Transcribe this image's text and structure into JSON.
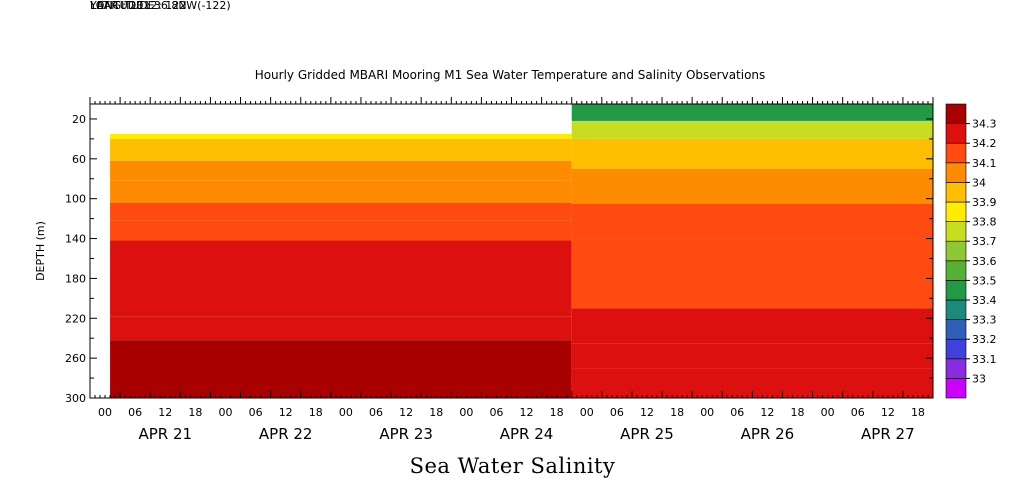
{
  "header": {
    "longitude": "LONGITUDE : 122W(-122)",
    "latitude": "LATITUDE : 36.8N",
    "year": "YEAR : 2012"
  },
  "chart_data": {
    "type": "heatmap",
    "title": "Hourly Gridded MBARI Mooring M1 Sea Water Temperature and Salinity Observations",
    "footer": "Sea Water Salinity",
    "xlabel": "",
    "ylabel": "DEPTH (m)",
    "y_ticks": [
      "20",
      "60",
      "100",
      "140",
      "180",
      "220",
      "260",
      "300"
    ],
    "ylim": [
      300,
      5
    ],
    "x_hour_labels": [
      "00",
      "06",
      "12",
      "18",
      "00",
      "06",
      "12",
      "18",
      "00",
      "06",
      "12",
      "18",
      "00",
      "06",
      "12",
      "18",
      "00",
      "06",
      "12",
      "18",
      "00",
      "06",
      "12",
      "18",
      "00",
      "06",
      "12",
      "18"
    ],
    "x_day_labels": [
      "APR 21",
      "APR 22",
      "APR 23",
      "APR 24",
      "APR 25",
      "APR 26",
      "APR 27"
    ],
    "colorbar": {
      "levels": [
        "33",
        "33.1",
        "33.2",
        "33.3",
        "33.4",
        "33.5",
        "33.6",
        "33.7",
        "33.8",
        "33.9",
        "34",
        "34.1",
        "34.2",
        "34.3"
      ],
      "colors": [
        "#cc00ff",
        "#8a2be2",
        "#4040dd",
        "#2f5fb8",
        "#1a8a7a",
        "#229944",
        "#55b033",
        "#8ec832",
        "#c8dc20",
        "#ffec00",
        "#ffbe00",
        "#ff8c00",
        "#ff4b10",
        "#dd1010",
        "#a80000"
      ]
    },
    "profile_before_apr25": [
      {
        "depth": [
          35,
          40
        ],
        "salinity": 33.8
      },
      {
        "depth": [
          40,
          62
        ],
        "salinity": 33.95
      },
      {
        "depth": [
          62,
          82
        ],
        "salinity": 34.0
      },
      {
        "depth": [
          82,
          104
        ],
        "salinity": 34.05
      },
      {
        "depth": [
          104,
          122
        ],
        "salinity": 34.1
      },
      {
        "depth": [
          122,
          142
        ],
        "salinity": 34.15
      },
      {
        "depth": [
          142,
          218
        ],
        "salinity": 34.2
      },
      {
        "depth": [
          218,
          242
        ],
        "salinity": 34.25
      },
      {
        "depth": [
          242,
          300
        ],
        "salinity": 34.3
      }
    ],
    "profile_after_apr25": [
      {
        "depth": [
          5,
          22
        ],
        "salinity": 33.4
      },
      {
        "depth": [
          22,
          40
        ],
        "salinity": 33.7
      },
      {
        "depth": [
          40,
          70
        ],
        "salinity": 33.9
      },
      {
        "depth": [
          70,
          105
        ],
        "salinity": 34.0
      },
      {
        "depth": [
          105,
          140
        ],
        "salinity": 34.1
      },
      {
        "depth": [
          140,
          210
        ],
        "salinity": 34.15
      },
      {
        "depth": [
          210,
          245
        ],
        "salinity": 34.2
      },
      {
        "depth": [
          245,
          270
        ],
        "salinity": 34.25
      },
      {
        "depth": [
          270,
          300
        ],
        "salinity": 34.2
      }
    ]
  }
}
